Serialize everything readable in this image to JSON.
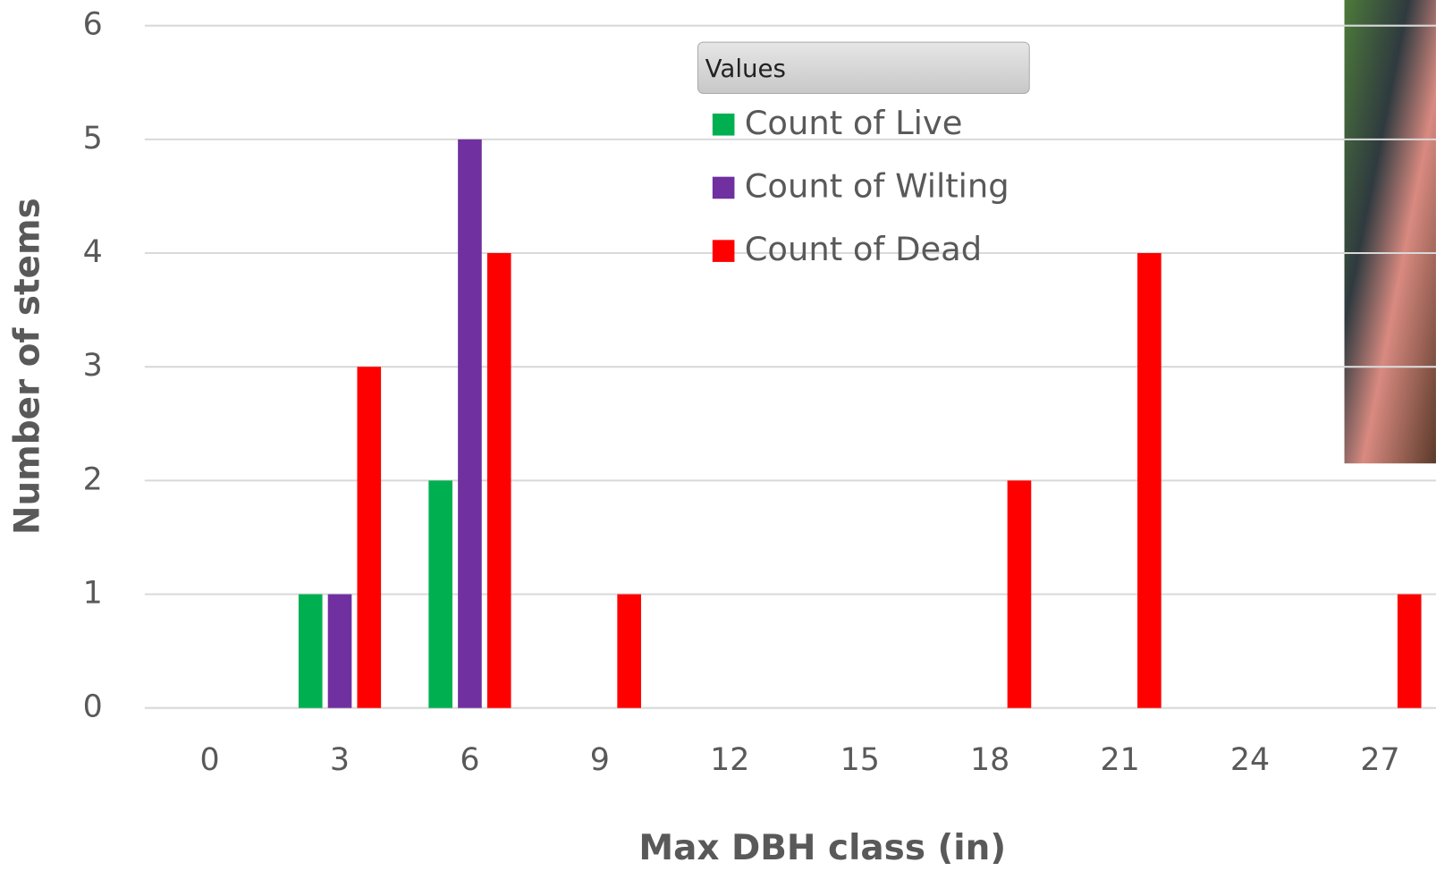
{
  "chart_data": {
    "type": "bar",
    "x_label": "Max DBH class (in)",
    "y_label": "Number of stems",
    "legend_title": "Values",
    "categories": [
      0,
      3,
      6,
      9,
      12,
      15,
      18,
      21,
      24,
      27
    ],
    "series": [
      {
        "name": "Count of Live",
        "color": "#00b050",
        "values": [
          null,
          1,
          2,
          null,
          null,
          null,
          null,
          null,
          null,
          null
        ]
      },
      {
        "name": "Count of Wilting",
        "color": "#7030a0",
        "values": [
          null,
          1,
          5,
          null,
          null,
          null,
          null,
          null,
          null,
          null
        ]
      },
      {
        "name": "Count of Dead",
        "color": "#ff0000",
        "values": [
          null,
          3,
          4,
          1,
          null,
          null,
          2,
          4,
          null,
          1
        ]
      }
    ],
    "ylim": [
      0,
      6
    ],
    "yticks": [
      0,
      1,
      2,
      3,
      4,
      5,
      6
    ],
    "grid": true
  }
}
